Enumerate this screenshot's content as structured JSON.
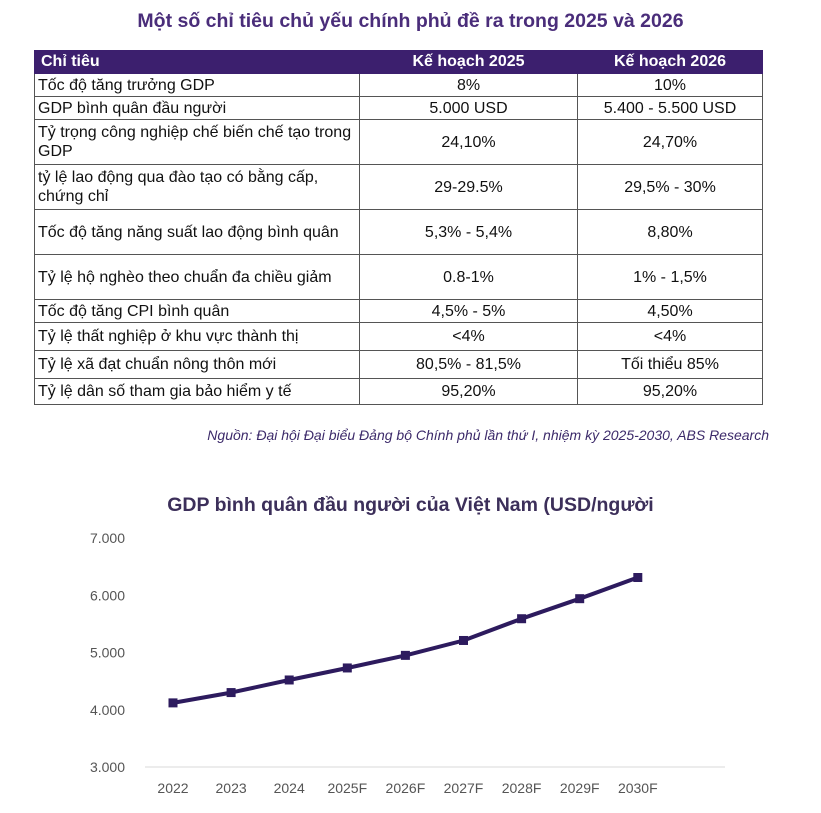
{
  "table": {
    "title": "Một số chỉ tiêu chủ yếu chính phủ đề ra trong 2025 và 2026",
    "headers": [
      "Chỉ tiêu",
      "Kế hoạch 2025",
      "Kế hoạch 2026"
    ],
    "rows": [
      {
        "indicator": "Tốc độ tăng trưởng GDP",
        "plan2025": "8%",
        "plan2026": "10%"
      },
      {
        "indicator": "GDP bình quân đầu người",
        "plan2025": "5.000 USD",
        "plan2026": "5.400 - 5.500 USD"
      },
      {
        "indicator": "Tỷ trọng công nghiệp chế biến chế tạo trong GDP",
        "plan2025": "24,10%",
        "plan2026": "24,70%"
      },
      {
        "indicator": "tỷ lệ lao động qua đào tạo có bằng cấp, chứng chỉ",
        "plan2025": "29-29.5%",
        "plan2026": "29,5% - 30%"
      },
      {
        "indicator": "Tốc độ tăng năng suất lao động bình quân",
        "plan2025": "5,3% - 5,4%",
        "plan2026": "8,80%"
      },
      {
        "indicator": "Tỷ lệ hộ nghèo theo chuẩn đa chiều giảm",
        "plan2025": "0.8-1%",
        "plan2026": "1% - 1,5%"
      },
      {
        "indicator": "Tốc độ tăng CPI bình quân",
        "plan2025": "4,5% - 5%",
        "plan2026": "4,50%"
      },
      {
        "indicator": "Tỷ lệ thất nghiệp ở khu vực thành thị",
        "plan2025": "<4%",
        "plan2026": "<4%"
      },
      {
        "indicator": "Tỷ lệ xã đạt chuẩn nông thôn mới",
        "plan2025": "80,5% - 81,5%",
        "plan2026": "Tối thiểu 85%"
      },
      {
        "indicator": "Tỷ lệ dân số tham gia bảo hiểm y tế",
        "plan2025": "95,20%",
        "plan2026": "95,20%"
      }
    ],
    "source": "Nguồn: Đại hội Đại biểu Đảng bộ Chính phủ lần thứ I, nhiệm kỳ 2025-2030, ABS Research"
  },
  "chart_data": {
    "type": "line",
    "title": "GDP bình quân đầu người của Việt Nam (USD/người",
    "categories": [
      "2022",
      "2023",
      "2024",
      "2025F",
      "2026F",
      "2027F",
      "2028F",
      "2029F",
      "2030F"
    ],
    "series": [
      {
        "name": "GDP bình quân đầu người",
        "values": [
          4120,
          4300,
          4520,
          4730,
          4950,
          5210,
          5590,
          5940,
          6310
        ]
      }
    ],
    "ylim": [
      3000,
      7000
    ],
    "yticks": [
      3000,
      4000,
      5000,
      6000,
      7000
    ],
    "ytick_labels": [
      "3.000",
      "4.000",
      "5.000",
      "6.000",
      "7.000"
    ],
    "xlabel": "",
    "ylabel": "",
    "grid": false,
    "colors": {
      "line": "#2d1b5e",
      "axis": "#d9d9d9"
    }
  }
}
